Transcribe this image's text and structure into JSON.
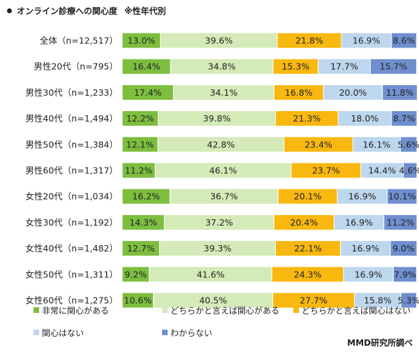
{
  "title": "オンライン診療への関心度",
  "subtitle": "※性年代別",
  "credit": "MMD研究所調べ",
  "chart_data": {
    "type": "bar",
    "orientation": "horizontal",
    "stacked": true,
    "percent_stacked": true,
    "categories": [
      "全体（n=12,517）",
      "男性20代（n=795）",
      "男性30代（n=1,233）",
      "男性40代（n=1,494）",
      "男性50代（n=1,384）",
      "男性60代（n=1,317）",
      "女性20代（n=1,034）",
      "女性30代（n=1,192）",
      "女性40代（n=1,482）",
      "女性50代（n=1,311）",
      "女性60代（n=1,275）"
    ],
    "series": [
      {
        "name": "非常に関心がある",
        "color": "#7dbe3f",
        "values": [
          13.0,
          16.4,
          17.4,
          12.2,
          12.1,
          11.2,
          16.2,
          14.3,
          12.7,
          9.2,
          10.6
        ]
      },
      {
        "name": "どちらかと言えば関心がある",
        "color": "#d4eab8",
        "values": [
          39.6,
          34.8,
          34.1,
          39.8,
          42.8,
          46.1,
          36.7,
          37.2,
          39.3,
          41.6,
          40.5
        ]
      },
      {
        "name": "どちらかと言えば関心はない",
        "color": "#f9b80f",
        "values": [
          21.8,
          15.3,
          16.8,
          21.3,
          23.4,
          23.7,
          20.1,
          20.4,
          22.1,
          24.3,
          27.7
        ]
      },
      {
        "name": "関心はない",
        "color": "#bdd7ee",
        "values": [
          16.9,
          17.7,
          20.0,
          18.0,
          16.1,
          14.4,
          16.9,
          16.9,
          16.9,
          16.9,
          15.8
        ]
      },
      {
        "name": "わからない",
        "color": "#6f8fcf",
        "values": [
          8.6,
          15.7,
          11.8,
          8.7,
          5.6,
          4.6,
          10.1,
          11.2,
          9.0,
          7.9,
          5.3
        ]
      }
    ],
    "xlim": [
      0,
      100
    ],
    "grid": false,
    "legend": "bottom"
  }
}
